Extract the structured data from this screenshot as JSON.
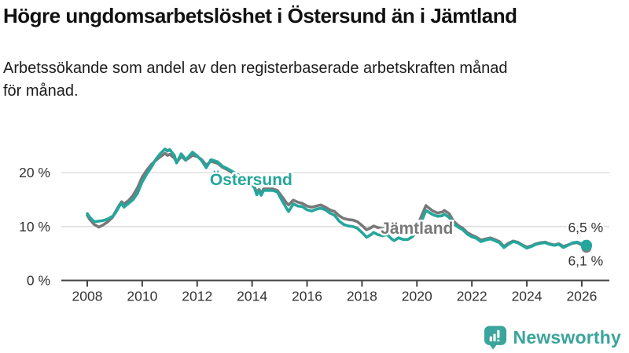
{
  "chart_data": {
    "type": "line",
    "title": "Högre ungdomsarbetslöshet i Östersund än i Jämtland",
    "subtitle_line1": "Arbetssökande som andel av den registerbaserade arbetskraften månad",
    "subtitle_line2": "för månad.",
    "grid": "horizontal",
    "legend_position": "inline-labels",
    "x_axis": {
      "range": [
        2007.05,
        2027.0
      ],
      "ticks": [
        {
          "year": 2008,
          "label": "2008"
        },
        {
          "year": 2010,
          "label": "2010"
        },
        {
          "year": 2012,
          "label": "2012"
        },
        {
          "year": 2014,
          "label": "2014"
        },
        {
          "year": 2016,
          "label": "2016"
        },
        {
          "year": 2018,
          "label": "2018"
        },
        {
          "year": 2020,
          "label": "2020"
        },
        {
          "year": 2022,
          "label": "2022"
        },
        {
          "year": 2024,
          "label": "2024"
        },
        {
          "year": 2026,
          "label": "2026"
        }
      ]
    },
    "y_axis": {
      "range": [
        0,
        30
      ],
      "ticks": [
        {
          "value": 0,
          "label": "0 %"
        },
        {
          "value": 10,
          "label": "10 %"
        },
        {
          "value": 20,
          "label": "20 %"
        }
      ]
    },
    "series": [
      {
        "name": "Jämtland",
        "color": "#787878",
        "end_label": "6,1 %",
        "end_label_pos": {
          "x": 2025.5,
          "y": 2.8
        },
        "label_pos": {
          "x": 2018.68,
          "y": 8.66
        },
        "points": [
          [
            2008.0,
            12.1
          ],
          [
            2008.08,
            11.4
          ],
          [
            2008.25,
            10.4
          ],
          [
            2008.42,
            9.9
          ],
          [
            2008.58,
            10.3
          ],
          [
            2008.75,
            10.9
          ],
          [
            2008.92,
            11.7
          ],
          [
            2009.0,
            12.5
          ],
          [
            2009.17,
            14.0
          ],
          [
            2009.25,
            14.6
          ],
          [
            2009.33,
            14.2
          ],
          [
            2009.5,
            14.8
          ],
          [
            2009.67,
            15.8
          ],
          [
            2009.83,
            17.2
          ],
          [
            2010.0,
            19.2
          ],
          [
            2010.17,
            20.5
          ],
          [
            2010.33,
            21.5
          ],
          [
            2010.5,
            22.3
          ],
          [
            2010.67,
            23.0
          ],
          [
            2010.83,
            23.6
          ],
          [
            2010.92,
            23.2
          ],
          [
            2011.0,
            23.4
          ],
          [
            2011.17,
            22.7
          ],
          [
            2011.25,
            21.9
          ],
          [
            2011.42,
            23.0
          ],
          [
            2011.5,
            22.7
          ],
          [
            2011.58,
            22.3
          ],
          [
            2011.75,
            22.9
          ],
          [
            2011.83,
            23.2
          ],
          [
            2012.0,
            23.0
          ],
          [
            2012.17,
            22.4
          ],
          [
            2012.33,
            21.4
          ],
          [
            2012.5,
            22.1
          ],
          [
            2012.58,
            22.0
          ],
          [
            2012.75,
            21.7
          ],
          [
            2012.92,
            21.0
          ],
          [
            2013.08,
            20.6
          ],
          [
            2013.25,
            20.1
          ],
          [
            2013.42,
            19.6
          ],
          [
            2013.58,
            19.1
          ],
          [
            2013.75,
            18.5
          ],
          [
            2013.92,
            17.9
          ],
          [
            2014.08,
            17.4
          ],
          [
            2014.17,
            16.3
          ],
          [
            2014.25,
            16.9
          ],
          [
            2014.33,
            16.2
          ],
          [
            2014.42,
            17.0
          ],
          [
            2014.58,
            17.0
          ],
          [
            2014.75,
            17.0
          ],
          [
            2014.92,
            16.7
          ],
          [
            2015.08,
            15.6
          ],
          [
            2015.25,
            14.4
          ],
          [
            2015.33,
            14.0
          ],
          [
            2015.5,
            14.9
          ],
          [
            2015.67,
            14.5
          ],
          [
            2015.83,
            14.3
          ],
          [
            2016.0,
            13.8
          ],
          [
            2016.17,
            13.6
          ],
          [
            2016.33,
            13.8
          ],
          [
            2016.5,
            14.0
          ],
          [
            2016.67,
            13.6
          ],
          [
            2016.83,
            13.1
          ],
          [
            2017.0,
            12.8
          ],
          [
            2017.17,
            12.0
          ],
          [
            2017.33,
            11.5
          ],
          [
            2017.5,
            11.3
          ],
          [
            2017.67,
            11.2
          ],
          [
            2017.83,
            10.9
          ],
          [
            2018.0,
            10.2
          ],
          [
            2018.17,
            9.4
          ],
          [
            2018.33,
            9.8
          ],
          [
            2018.42,
            10.1
          ],
          [
            2018.58,
            9.8
          ],
          [
            2018.75,
            9.6
          ],
          [
            2018.92,
            9.7
          ],
          [
            2019.08,
            9.0
          ],
          [
            2019.17,
            8.7
          ],
          [
            2019.33,
            9.0
          ],
          [
            2019.5,
            8.8
          ],
          [
            2019.67,
            8.8
          ],
          [
            2019.83,
            9.2
          ],
          [
            2020.0,
            10.0
          ],
          [
            2020.17,
            12.0
          ],
          [
            2020.33,
            13.9
          ],
          [
            2020.42,
            13.5
          ],
          [
            2020.58,
            12.9
          ],
          [
            2020.75,
            12.5
          ],
          [
            2020.92,
            12.7
          ],
          [
            2021.0,
            13.0
          ],
          [
            2021.17,
            12.4
          ],
          [
            2021.33,
            11.0
          ],
          [
            2021.5,
            10.2
          ],
          [
            2021.67,
            9.7
          ],
          [
            2021.83,
            8.9
          ],
          [
            2022.0,
            8.4
          ],
          [
            2022.17,
            8.0
          ],
          [
            2022.33,
            7.5
          ],
          [
            2022.5,
            7.7
          ],
          [
            2022.67,
            7.9
          ],
          [
            2022.83,
            7.6
          ],
          [
            2023.0,
            7.2
          ],
          [
            2023.17,
            6.3
          ],
          [
            2023.33,
            6.9
          ],
          [
            2023.5,
            7.3
          ],
          [
            2023.67,
            7.1
          ],
          [
            2023.83,
            6.6
          ],
          [
            2024.0,
            6.2
          ],
          [
            2024.17,
            6.4
          ],
          [
            2024.33,
            6.8
          ],
          [
            2024.5,
            7.0
          ],
          [
            2024.67,
            7.1
          ],
          [
            2024.83,
            6.8
          ],
          [
            2025.0,
            6.6
          ],
          [
            2025.17,
            6.8
          ],
          [
            2025.33,
            6.3
          ],
          [
            2025.5,
            6.6
          ],
          [
            2025.67,
            6.9
          ],
          [
            2025.83,
            7.0
          ],
          [
            2026.0,
            6.6
          ],
          [
            2026.17,
            6.1
          ]
        ]
      },
      {
        "name": "Östersund",
        "color": "#25a69c",
        "end_label": "6,5 %",
        "end_label_pos": {
          "x": 2025.5,
          "y": 8.95
        },
        "label_pos": {
          "x": 2012.46,
          "y": 17.7
        },
        "points": [
          [
            2008.0,
            12.4
          ],
          [
            2008.08,
            11.8
          ],
          [
            2008.25,
            10.9
          ],
          [
            2008.42,
            11.0
          ],
          [
            2008.58,
            11.1
          ],
          [
            2008.75,
            11.4
          ],
          [
            2008.92,
            11.9
          ],
          [
            2009.0,
            12.3
          ],
          [
            2009.17,
            13.8
          ],
          [
            2009.25,
            14.4
          ],
          [
            2009.33,
            13.6
          ],
          [
            2009.5,
            14.3
          ],
          [
            2009.67,
            15.0
          ],
          [
            2009.83,
            16.2
          ],
          [
            2010.0,
            18.3
          ],
          [
            2010.17,
            19.8
          ],
          [
            2010.33,
            21.0
          ],
          [
            2010.5,
            22.5
          ],
          [
            2010.67,
            23.6
          ],
          [
            2010.83,
            24.4
          ],
          [
            2010.92,
            24.0
          ],
          [
            2011.0,
            24.3
          ],
          [
            2011.17,
            23.2
          ],
          [
            2011.25,
            21.8
          ],
          [
            2011.42,
            23.5
          ],
          [
            2011.5,
            23.0
          ],
          [
            2011.58,
            22.4
          ],
          [
            2011.75,
            23.3
          ],
          [
            2011.83,
            23.8
          ],
          [
            2012.0,
            23.1
          ],
          [
            2012.17,
            22.2
          ],
          [
            2012.33,
            20.9
          ],
          [
            2012.5,
            22.4
          ],
          [
            2012.58,
            22.3
          ],
          [
            2012.75,
            22.0
          ],
          [
            2012.92,
            21.2
          ],
          [
            2013.08,
            20.8
          ],
          [
            2013.25,
            20.3
          ],
          [
            2013.42,
            19.8
          ],
          [
            2013.58,
            19.3
          ],
          [
            2013.75,
            18.7
          ],
          [
            2013.92,
            18.0
          ],
          [
            2014.08,
            17.3
          ],
          [
            2014.17,
            15.9
          ],
          [
            2014.25,
            16.6
          ],
          [
            2014.33,
            15.8
          ],
          [
            2014.42,
            16.7
          ],
          [
            2014.58,
            16.7
          ],
          [
            2014.75,
            16.7
          ],
          [
            2014.92,
            16.4
          ],
          [
            2015.08,
            14.9
          ],
          [
            2015.25,
            13.4
          ],
          [
            2015.33,
            12.8
          ],
          [
            2015.5,
            14.2
          ],
          [
            2015.67,
            13.8
          ],
          [
            2015.83,
            13.7
          ],
          [
            2016.0,
            13.1
          ],
          [
            2016.17,
            12.9
          ],
          [
            2016.33,
            13.2
          ],
          [
            2016.5,
            13.4
          ],
          [
            2016.67,
            13.1
          ],
          [
            2016.83,
            12.5
          ],
          [
            2017.0,
            12.1
          ],
          [
            2017.17,
            11.0
          ],
          [
            2017.33,
            10.4
          ],
          [
            2017.5,
            10.1
          ],
          [
            2017.67,
            10.0
          ],
          [
            2017.83,
            9.7
          ],
          [
            2018.0,
            8.9
          ],
          [
            2018.17,
            8.0
          ],
          [
            2018.33,
            8.5
          ],
          [
            2018.42,
            8.9
          ],
          [
            2018.58,
            8.5
          ],
          [
            2018.75,
            8.3
          ],
          [
            2018.92,
            8.5
          ],
          [
            2019.08,
            7.7
          ],
          [
            2019.17,
            7.4
          ],
          [
            2019.33,
            7.9
          ],
          [
            2019.5,
            7.6
          ],
          [
            2019.67,
            7.6
          ],
          [
            2019.83,
            8.1
          ],
          [
            2020.0,
            9.0
          ],
          [
            2020.17,
            11.0
          ],
          [
            2020.33,
            13.0
          ],
          [
            2020.42,
            12.7
          ],
          [
            2020.58,
            12.2
          ],
          [
            2020.75,
            11.9
          ],
          [
            2020.92,
            12.0
          ],
          [
            2021.0,
            12.3
          ],
          [
            2021.17,
            11.7
          ],
          [
            2021.33,
            10.5
          ],
          [
            2021.5,
            9.9
          ],
          [
            2021.67,
            9.4
          ],
          [
            2021.83,
            8.6
          ],
          [
            2022.0,
            8.1
          ],
          [
            2022.17,
            7.8
          ],
          [
            2022.33,
            7.2
          ],
          [
            2022.5,
            7.5
          ],
          [
            2022.67,
            7.7
          ],
          [
            2022.83,
            7.4
          ],
          [
            2023.0,
            7.0
          ],
          [
            2023.17,
            6.1
          ],
          [
            2023.33,
            6.7
          ],
          [
            2023.5,
            7.2
          ],
          [
            2023.67,
            7.0
          ],
          [
            2023.83,
            6.5
          ],
          [
            2024.0,
            6.0
          ],
          [
            2024.17,
            6.3
          ],
          [
            2024.33,
            6.7
          ],
          [
            2024.5,
            6.9
          ],
          [
            2024.67,
            7.0
          ],
          [
            2024.83,
            6.7
          ],
          [
            2025.0,
            6.5
          ],
          [
            2025.17,
            6.7
          ],
          [
            2025.33,
            6.1
          ],
          [
            2025.5,
            6.5
          ],
          [
            2025.67,
            7.0
          ],
          [
            2025.83,
            7.1
          ],
          [
            2026.0,
            6.8
          ],
          [
            2026.17,
            6.5
          ]
        ]
      }
    ],
    "colors": {
      "grid": "#d9d9d9",
      "axis": "#444444",
      "tick_text": "#333333",
      "title_text": "#111111"
    }
  },
  "branding": {
    "logo_text": "Newsworthy",
    "logo_color": "#3ba49c",
    "icon": "bar-chart-speech-bubble-icon"
  }
}
